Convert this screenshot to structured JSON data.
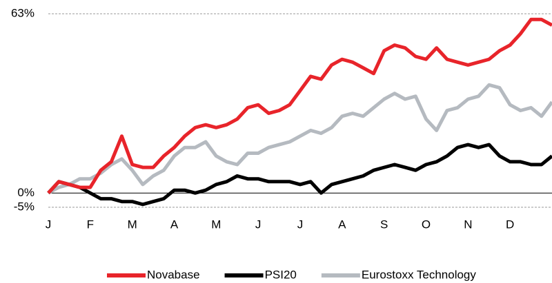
{
  "chart_data": {
    "type": "line",
    "categories": [
      "J",
      null,
      null,
      null,
      "F",
      null,
      null,
      null,
      "M",
      null,
      null,
      null,
      "A",
      null,
      null,
      null,
      "M",
      null,
      null,
      null,
      "J",
      null,
      null,
      null,
      "J",
      null,
      null,
      null,
      "A",
      null,
      null,
      null,
      "S",
      null,
      null,
      null,
      "O",
      null,
      null,
      null,
      "N",
      null,
      null,
      null,
      "D",
      null,
      null,
      null,
      null
    ],
    "series": [
      {
        "name": "Novabase",
        "color": "#e8242a",
        "values": [
          0,
          4,
          3,
          2,
          2,
          8,
          11,
          20,
          10,
          9,
          9,
          13,
          16,
          20,
          23,
          24,
          23,
          24,
          26,
          30,
          31,
          28,
          29,
          31,
          36,
          41,
          40,
          45,
          47,
          46,
          44,
          42,
          50,
          52,
          51,
          48,
          47,
          51,
          47,
          46,
          45,
          46,
          47,
          50,
          52,
          56,
          61,
          61,
          59
        ]
      },
      {
        "name": "PSI20",
        "color": "#000000",
        "values": [
          0,
          4,
          3,
          2,
          0,
          -2,
          -2,
          -3,
          -3,
          -4,
          -3,
          -2,
          1,
          1,
          0,
          1,
          3,
          4,
          6,
          5,
          5,
          4,
          4,
          4,
          3,
          4,
          0,
          3,
          4,
          5,
          6,
          8,
          9,
          10,
          9,
          8,
          10,
          11,
          13,
          16,
          17,
          16,
          17,
          13,
          11,
          11,
          10,
          10,
          13
        ]
      },
      {
        "name": "Eurostoxx Technology",
        "color": "#b5bac0",
        "values": [
          0,
          2,
          3,
          5,
          5,
          7,
          10,
          12,
          8,
          3,
          6,
          8,
          13,
          16,
          16,
          18,
          13,
          11,
          10,
          14,
          14,
          16,
          17,
          18,
          20,
          22,
          21,
          23,
          27,
          28,
          27,
          30,
          33,
          35,
          33,
          34,
          26,
          22,
          29,
          30,
          33,
          34,
          38,
          37,
          31,
          29,
          30,
          27,
          32
        ]
      }
    ],
    "ylim": [
      -5,
      63
    ],
    "yticks": [
      {
        "value": 63,
        "label": "63%"
      },
      {
        "value": 0,
        "label": "0%"
      },
      {
        "value": -5,
        "label": "-5%"
      }
    ],
    "grid": true,
    "legend": "bottom"
  }
}
